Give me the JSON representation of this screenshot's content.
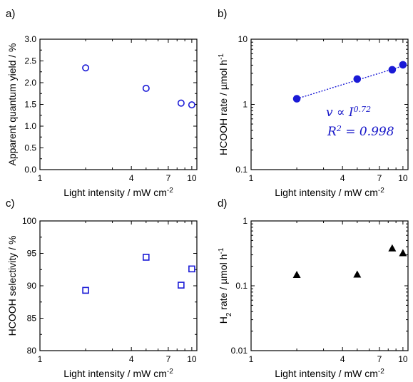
{
  "colors": {
    "series": "#1a1ad6",
    "fit": "#1a1ad6",
    "h2": "#000000",
    "annotation": "#1515c8"
  },
  "chart_data": [
    {
      "panel": "a)",
      "type": "scatter",
      "xlabel": "Light intensity / mW cm",
      "xlabel_sup": "-2",
      "ylabel": "Apparent quantum yield / %",
      "xscale": "log",
      "xlim": [
        1,
        10.8
      ],
      "yscale": "linear",
      "ylim": [
        0,
        3.0
      ],
      "xticks": [
        1,
        4,
        7,
        10
      ],
      "yticks": [
        0.0,
        0.5,
        1.0,
        1.5,
        2.0,
        2.5,
        3.0
      ],
      "ytick_labels": [
        "0.0",
        "0.5",
        "1.0",
        "1.5",
        "2.0",
        "2.5",
        "3.0"
      ],
      "marker": "open-circle",
      "x": [
        2.0,
        5.0,
        8.5,
        10.0
      ],
      "y": [
        2.34,
        1.87,
        1.53,
        1.49
      ]
    },
    {
      "panel": "b)",
      "type": "scatter",
      "xlabel": "Light intensity / mW cm",
      "xlabel_sup": "-2",
      "ylabel": "HCOOH rate / µmol h",
      "ylabel_sup": "-1",
      "xscale": "log",
      "xlim": [
        1,
        10.8
      ],
      "yscale": "log",
      "ylim": [
        0.1,
        10
      ],
      "xticks": [
        1,
        4,
        7,
        10
      ],
      "yticks": [
        0.1,
        1,
        10
      ],
      "ytick_labels": [
        "0.1",
        "1",
        "10"
      ],
      "marker": "filled-circle",
      "x": [
        2.0,
        5.0,
        8.5,
        10.0
      ],
      "y": [
        1.22,
        2.45,
        3.4,
        4.05
      ],
      "fit": {
        "type": "power",
        "exponent": 0.72,
        "from": 2.0,
        "to": 10.0
      },
      "annotations": [
        "v ∝ I",
        "0.72",
        "R",
        "2",
        " = 0.998"
      ]
    },
    {
      "panel": "c)",
      "type": "scatter",
      "xlabel": "Light intensity / mW cm",
      "xlabel_sup": "-2",
      "ylabel": "HCOOH selectivity / %",
      "xscale": "log",
      "xlim": [
        1,
        10.8
      ],
      "yscale": "linear",
      "ylim": [
        80,
        100
      ],
      "xticks": [
        1,
        4,
        7,
        10
      ],
      "yticks": [
        80,
        85,
        90,
        95,
        100
      ],
      "ytick_labels": [
        "80",
        "85",
        "90",
        "95",
        "100"
      ],
      "marker": "open-square",
      "x": [
        2.0,
        5.0,
        8.5,
        10.0
      ],
      "y": [
        89.3,
        94.4,
        90.1,
        92.6
      ]
    },
    {
      "panel": "d)",
      "type": "scatter",
      "xlabel": "Light intensity / mW cm",
      "xlabel_sup": "-2",
      "ylabel": "H",
      "ylabel_sub": "2",
      "ylabel_rest": " rate / µmol h",
      "ylabel_sup": "-1",
      "xscale": "log",
      "xlim": [
        1,
        10.8
      ],
      "yscale": "log",
      "ylim": [
        0.01,
        1
      ],
      "xticks": [
        1,
        4,
        7,
        10
      ],
      "yticks": [
        0.01,
        0.1,
        1
      ],
      "ytick_labels": [
        "0.01",
        "0.1",
        "1"
      ],
      "marker": "filled-triangle",
      "x": [
        2.0,
        5.0,
        8.5,
        10.0
      ],
      "y": [
        0.148,
        0.15,
        0.38,
        0.32
      ]
    }
  ]
}
